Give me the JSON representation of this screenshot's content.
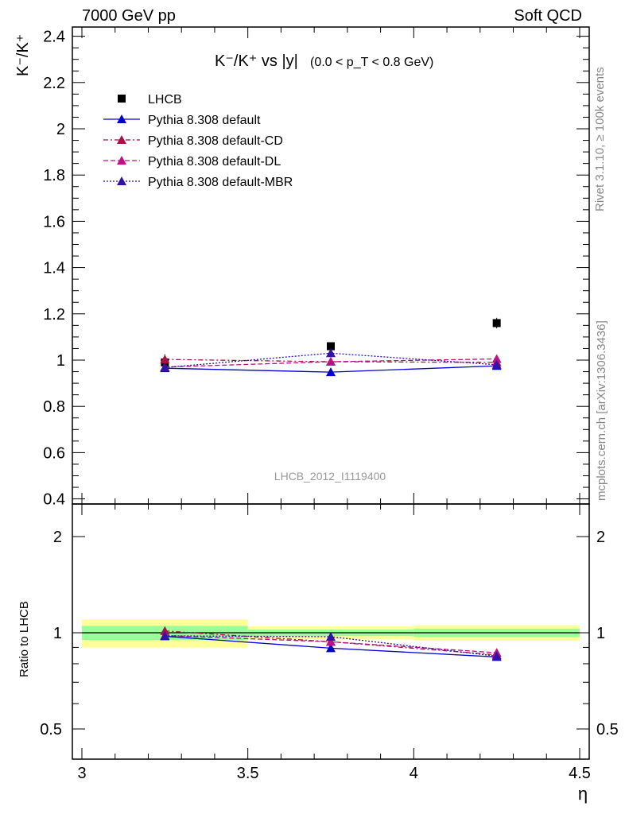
{
  "header": {
    "left": "7000 GeV pp",
    "right": "Soft QCD"
  },
  "side_labels": {
    "rivet": "Rivet 3.1.10, ≥ 100k events",
    "mcplots": "mcplots.cern.ch [arXiv:1306.3436]"
  },
  "chart_data": {
    "type": "scatter",
    "title": {
      "main": "K⁻/K⁺ vs |y|",
      "cut": "(0.0 < p_T < 0.8 GeV)"
    },
    "analysis_label": "LHCB_2012_I1119400",
    "main_panel": {
      "ylabel": "K⁻/K⁺",
      "ylim": [
        0.4,
        2.45
      ],
      "yticks": [
        "0.4",
        "0.6",
        "0.8",
        "1",
        "1.2",
        "1.4",
        "1.6",
        "1.8",
        "2",
        "2.2",
        "2.4"
      ]
    },
    "ratio_panel": {
      "ylabel": "Ratio to LHCB",
      "scale": "log",
      "ylim": [
        0.4,
        2.3
      ],
      "yticks": [
        "0.5",
        "1",
        "2"
      ]
    },
    "x": {
      "label": "η",
      "lim": [
        2.97,
        4.5
      ],
      "ticks": [
        "3",
        "3.5",
        "4",
        "4.5"
      ],
      "bin_edges": [
        3.0,
        3.5,
        4.0,
        4.5
      ],
      "centers": [
        3.25,
        3.75,
        4.25
      ]
    },
    "data": {
      "name": "LHCB",
      "values": [
        0.99,
        1.06,
        1.16
      ],
      "band_inner": [
        0.05,
        0.025,
        0.035
      ],
      "band_outer": [
        0.1,
        0.05,
        0.065
      ],
      "color": "#000000"
    },
    "series": [
      {
        "name": "Pythia 8.308 default",
        "color": "#0000cc",
        "dash": "solid",
        "values": [
          0.965,
          0.948,
          0.975
        ],
        "ratio": [
          0.975,
          0.895,
          0.84
        ]
      },
      {
        "name": "Pythia 8.308 default-CD",
        "color": "#aa1144",
        "dash": "dashdot",
        "values": [
          1.003,
          0.993,
          0.99
        ],
        "ratio": [
          1.013,
          0.937,
          0.853
        ]
      },
      {
        "name": "Pythia 8.308 default-DL",
        "color": "#bb1188",
        "dash": "dashed",
        "values": [
          0.97,
          0.993,
          1.005
        ],
        "ratio": [
          0.98,
          0.937,
          0.866
        ]
      },
      {
        "name": "Pythia 8.308 default-MBR",
        "color": "#3311aa",
        "dash": "dotted",
        "values": [
          0.968,
          1.03,
          0.98
        ],
        "ratio": [
          0.978,
          0.972,
          0.845
        ]
      }
    ],
    "grid": false,
    "legend_position": "top-left"
  }
}
